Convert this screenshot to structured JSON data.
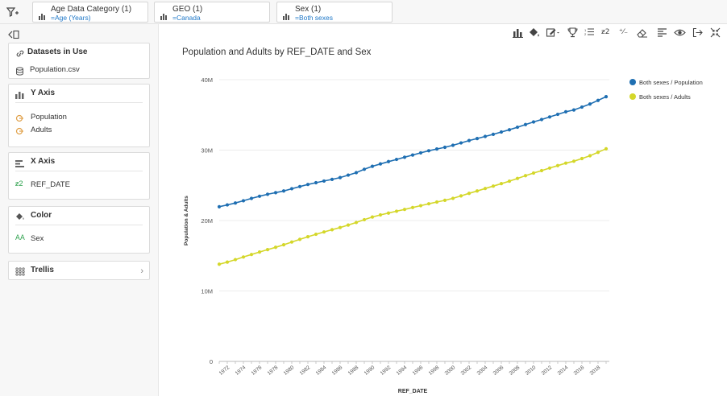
{
  "filters": [
    {
      "title": "Age Data Category (1)",
      "value": "=Age (Years)"
    },
    {
      "title": "GEO (1)",
      "value": "=Canada"
    },
    {
      "title": "Sex (1)",
      "value": "=Both sexes"
    }
  ],
  "panel": {
    "datasets": {
      "title": "Datasets in Use",
      "items": [
        "Population.csv"
      ]
    },
    "yaxis": {
      "title": "Y Axis",
      "items": [
        "Population",
        "Adults"
      ]
    },
    "xaxis": {
      "title": "X Axis",
      "items": [
        "REF_DATE"
      ]
    },
    "color": {
      "title": "Color",
      "items": [
        "Sex"
      ]
    },
    "trellis": {
      "title": "Trellis"
    }
  },
  "toolbar_icons": [
    "bar-chart-icon",
    "paint-bucket-icon",
    "edit-icon",
    "trophy-icon",
    "list-icon",
    "number-format-icon",
    "percent-format-icon",
    "eraser-icon",
    "align-icon",
    "eye-icon",
    "export-icon",
    "fullscreen-icon"
  ],
  "colors": {
    "population": "#1f6fb2",
    "adults": "#d4d72a",
    "accent": "#1f78c8"
  },
  "chart_data": {
    "type": "line",
    "title": "Population and Adults by REF_DATE and Sex",
    "xlabel": "REF_DATE",
    "ylabel": "Population & Adults",
    "ylim": [
      0,
      40000000
    ],
    "yticks": [
      0,
      10000000,
      20000000,
      30000000,
      40000000
    ],
    "ytick_labels": [
      "0",
      "10M",
      "20M",
      "30M",
      "40M"
    ],
    "x": [
      1971,
      1972,
      1973,
      1974,
      1975,
      1976,
      1977,
      1978,
      1979,
      1980,
      1981,
      1982,
      1983,
      1984,
      1985,
      1986,
      1987,
      1988,
      1989,
      1990,
      1991,
      1992,
      1993,
      1994,
      1995,
      1996,
      1997,
      1998,
      1999,
      2000,
      2001,
      2002,
      2003,
      2004,
      2005,
      2006,
      2007,
      2008,
      2009,
      2010,
      2011,
      2012,
      2013,
      2014,
      2015,
      2016,
      2017,
      2018,
      2019
    ],
    "xtick_labels": [
      "1972",
      "1974",
      "1976",
      "1978",
      "1980",
      "1982",
      "1984",
      "1986",
      "1988",
      "1990",
      "1992",
      "1994",
      "1996",
      "1998",
      "2000",
      "2002",
      "2004",
      "2006",
      "2008",
      "2010",
      "2012",
      "2014",
      "2016",
      "2018"
    ],
    "legend_position": "top-right",
    "series": [
      {
        "name": "Both sexes / Population",
        "values": [
          21960000,
          22220000,
          22490000,
          22810000,
          23140000,
          23450000,
          23730000,
          23960000,
          24200000,
          24520000,
          24820000,
          25120000,
          25370000,
          25610000,
          25840000,
          26100000,
          26450000,
          26800000,
          27280000,
          27700000,
          28040000,
          28370000,
          28680000,
          28990000,
          29300000,
          29610000,
          29910000,
          30160000,
          30400000,
          30690000,
          31020000,
          31360000,
          31640000,
          31940000,
          32240000,
          32570000,
          32890000,
          33250000,
          33630000,
          34000000,
          34340000,
          34710000,
          35080000,
          35440000,
          35700000,
          36110000,
          36540000,
          37060000,
          37590000
        ]
      },
      {
        "name": "Both sexes / Adults",
        "values": [
          13800000,
          14100000,
          14450000,
          14820000,
          15180000,
          15530000,
          15870000,
          16200000,
          16560000,
          16950000,
          17330000,
          17700000,
          18050000,
          18380000,
          18700000,
          19010000,
          19360000,
          19720000,
          20120000,
          20500000,
          20800000,
          21060000,
          21320000,
          21580000,
          21850000,
          22110000,
          22380000,
          22630000,
          22870000,
          23150000,
          23500000,
          23860000,
          24200000,
          24550000,
          24890000,
          25240000,
          25590000,
          25980000,
          26370000,
          26740000,
          27090000,
          27450000,
          27800000,
          28150000,
          28420000,
          28800000,
          29200000,
          29690000,
          30190000
        ]
      }
    ]
  }
}
